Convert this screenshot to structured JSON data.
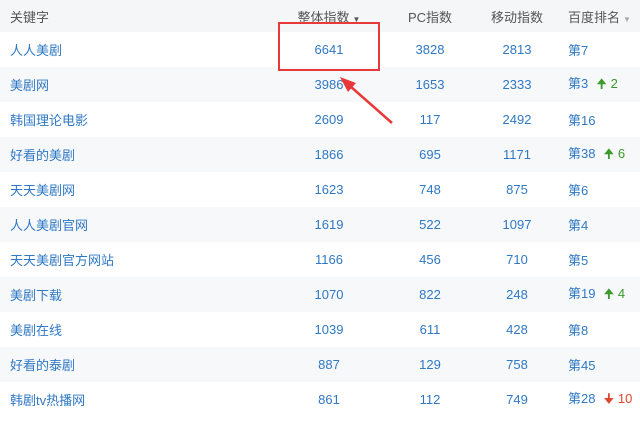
{
  "headers": {
    "keyword": "关键字",
    "overall": "整体指数",
    "pc": "PC指数",
    "mobile": "移动指数",
    "baidu_rank": "百度排名"
  },
  "sort_icon": "caret-down-icon",
  "colors": {
    "link": "#2f78c4",
    "up": "#3a9a2a",
    "down": "#e0452f",
    "highlight": "#e8393a"
  },
  "rows": [
    {
      "keyword": "人人美剧",
      "overall": "6641",
      "pc": "3828",
      "mobile": "2813",
      "rank": "第7",
      "change": "",
      "dir": ""
    },
    {
      "keyword": "美剧网",
      "overall": "3986",
      "pc": "1653",
      "mobile": "2333",
      "rank": "第3",
      "change": "2",
      "dir": "up"
    },
    {
      "keyword": "韩国理论电影",
      "overall": "2609",
      "pc": "117",
      "mobile": "2492",
      "rank": "第16",
      "change": "",
      "dir": ""
    },
    {
      "keyword": "好看的美剧",
      "overall": "1866",
      "pc": "695",
      "mobile": "1171",
      "rank": "第38",
      "change": "6",
      "dir": "up"
    },
    {
      "keyword": "天天美剧网",
      "overall": "1623",
      "pc": "748",
      "mobile": "875",
      "rank": "第6",
      "change": "",
      "dir": ""
    },
    {
      "keyword": "人人美剧官网",
      "overall": "1619",
      "pc": "522",
      "mobile": "1097",
      "rank": "第4",
      "change": "",
      "dir": ""
    },
    {
      "keyword": "天天美剧官方网站",
      "overall": "1166",
      "pc": "456",
      "mobile": "710",
      "rank": "第5",
      "change": "",
      "dir": ""
    },
    {
      "keyword": "美剧下载",
      "overall": "1070",
      "pc": "822",
      "mobile": "248",
      "rank": "第19",
      "change": "4",
      "dir": "up"
    },
    {
      "keyword": "美剧在线",
      "overall": "1039",
      "pc": "611",
      "mobile": "428",
      "rank": "第8",
      "change": "",
      "dir": ""
    },
    {
      "keyword": "好看的泰剧",
      "overall": "887",
      "pc": "129",
      "mobile": "758",
      "rank": "第45",
      "change": "",
      "dir": ""
    },
    {
      "keyword": "韩剧tv热播网",
      "overall": "861",
      "pc": "112",
      "mobile": "749",
      "rank": "第28",
      "change": "10",
      "dir": "down"
    }
  ]
}
